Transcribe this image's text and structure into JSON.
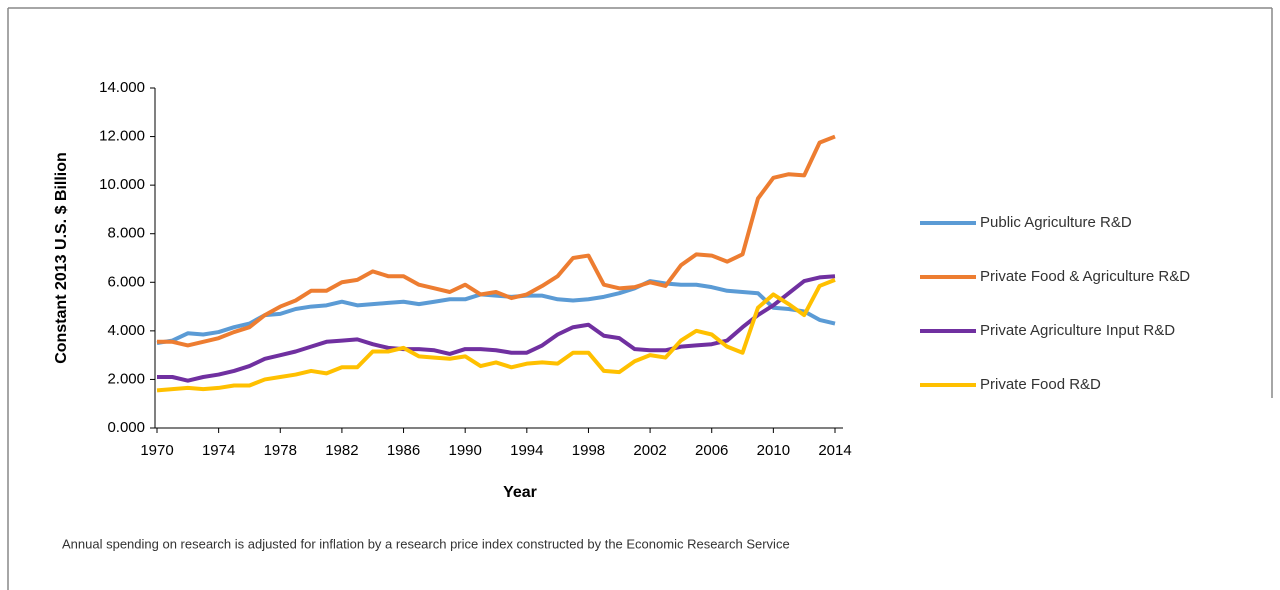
{
  "chart_data": {
    "type": "line",
    "y_label": "Constant 2013 U.S. $ Billion",
    "x_label": "Year",
    "note": "Annual spending on research is adjusted for inflation by a research price index constructed by the Economic Research Service",
    "x": [
      1970,
      1971,
      1972,
      1973,
      1974,
      1975,
      1976,
      1977,
      1978,
      1979,
      1980,
      1981,
      1982,
      1983,
      1984,
      1985,
      1986,
      1987,
      1988,
      1989,
      1990,
      1991,
      1992,
      1993,
      1994,
      1995,
      1996,
      1997,
      1998,
      1999,
      2000,
      2001,
      2002,
      2003,
      2004,
      2005,
      2006,
      2007,
      2008,
      2009,
      2010,
      2011,
      2012,
      2013,
      2014
    ],
    "series": [
      {
        "name": "Public Agriculture R&D",
        "color": "#5b9bd5",
        "values": [
          3.5,
          3.6,
          3.9,
          3.85,
          3.95,
          4.15,
          4.3,
          4.65,
          4.7,
          4.9,
          5.0,
          5.05,
          5.2,
          5.05,
          5.1,
          5.15,
          5.2,
          5.1,
          5.2,
          5.3,
          5.3,
          5.5,
          5.45,
          5.4,
          5.45,
          5.45,
          5.3,
          5.25,
          5.3,
          5.4,
          5.55,
          5.75,
          6.05,
          5.95,
          5.9,
          5.9,
          5.8,
          5.65,
          5.6,
          5.55,
          4.95,
          4.9,
          4.8,
          4.45,
          4.3
        ]
      },
      {
        "name": "Private Food & Agriculture R&D",
        "color": "#ed7d31",
        "values": [
          3.55,
          3.55,
          3.4,
          3.55,
          3.7,
          3.95,
          4.15,
          4.65,
          5.0,
          5.25,
          5.65,
          5.65,
          6.0,
          6.1,
          6.45,
          6.25,
          6.25,
          5.9,
          5.75,
          5.6,
          5.9,
          5.5,
          5.6,
          5.35,
          5.5,
          5.85,
          6.25,
          7.0,
          7.1,
          5.9,
          5.75,
          5.8,
          6.0,
          5.85,
          6.7,
          7.15,
          7.1,
          6.85,
          7.15,
          9.45,
          10.3,
          10.45,
          10.4,
          11.75,
          12.0
        ]
      },
      {
        "name": "Private Agriculture Input R&D",
        "color": "#7030a0",
        "values": [
          2.1,
          2.1,
          1.95,
          2.1,
          2.2,
          2.35,
          2.55,
          2.85,
          3.0,
          3.15,
          3.35,
          3.55,
          3.6,
          3.65,
          3.45,
          3.3,
          3.25,
          3.25,
          3.2,
          3.05,
          3.25,
          3.25,
          3.2,
          3.1,
          3.1,
          3.4,
          3.85,
          4.15,
          4.25,
          3.8,
          3.7,
          3.25,
          3.2,
          3.2,
          3.35,
          3.4,
          3.45,
          3.6,
          4.15,
          4.65,
          5.05,
          5.55,
          6.05,
          6.2,
          6.25
        ]
      },
      {
        "name": "Private Food R&D",
        "color": "#ffc000",
        "values": [
          1.55,
          1.6,
          1.65,
          1.6,
          1.65,
          1.75,
          1.75,
          2.0,
          2.1,
          2.2,
          2.35,
          2.25,
          2.5,
          2.5,
          3.15,
          3.15,
          3.3,
          2.95,
          2.9,
          2.85,
          2.95,
          2.55,
          2.7,
          2.5,
          2.65,
          2.7,
          2.65,
          3.1,
          3.1,
          2.35,
          2.3,
          2.75,
          3.0,
          2.9,
          3.6,
          4.0,
          3.85,
          3.35,
          3.1,
          4.95,
          5.5,
          5.1,
          4.65,
          5.85,
          6.1
        ]
      }
    ],
    "xlim": [
      1970,
      2014
    ],
    "xticks": [
      1970,
      1974,
      1978,
      1982,
      1986,
      1990,
      1994,
      1998,
      2002,
      2006,
      2010,
      2014
    ],
    "ylim": [
      0,
      14
    ],
    "yticks": [
      {
        "value": 0,
        "label": "0.000"
      },
      {
        "value": 2,
        "label": "2.000"
      },
      {
        "value": 4,
        "label": "4.000"
      },
      {
        "value": 6,
        "label": "6.000"
      },
      {
        "value": 8,
        "label": "8.000"
      },
      {
        "value": 10,
        "label": "10.000"
      },
      {
        "value": 12,
        "label": "12.000"
      },
      {
        "value": 14,
        "label": "14.000"
      }
    ],
    "grid": false,
    "legend": "right"
  }
}
